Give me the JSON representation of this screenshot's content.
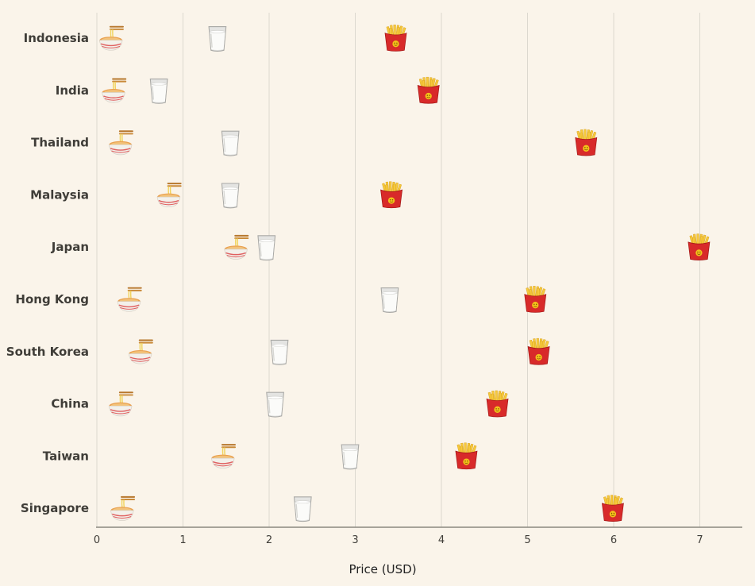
{
  "chart_data": {
    "type": "scatter",
    "xlabel": "Price (USD)",
    "ylabel": "",
    "xlim": [
      0,
      7.5
    ],
    "xticks": [
      0,
      1,
      2,
      3,
      4,
      5,
      6,
      7
    ],
    "grid": "vertical",
    "categories": [
      "Indonesia",
      "India",
      "Thailand",
      "Malaysia",
      "Japan",
      "Hong Kong",
      "South Korea",
      "China",
      "Taiwan",
      "Singapore"
    ],
    "series": [
      {
        "icon": "noodle-bowl-icon",
        "values": [
          0.18,
          0.21,
          0.29,
          0.85,
          1.63,
          0.39,
          0.52,
          0.29,
          1.48,
          0.31
        ]
      },
      {
        "icon": "milk-glass-icon",
        "values": [
          1.4,
          0.72,
          1.55,
          1.55,
          1.97,
          3.4,
          2.12,
          2.07,
          2.94,
          2.39
        ]
      },
      {
        "icon": "french-fries-icon",
        "values": [
          3.47,
          3.85,
          5.68,
          3.42,
          6.99,
          5.09,
          5.13,
          4.65,
          4.29,
          5.99
        ]
      }
    ]
  },
  "colors": {
    "background": "#faf4ea",
    "grid": "#dcd8cf",
    "axis": "#8a8880",
    "text": "#3f3d38"
  }
}
